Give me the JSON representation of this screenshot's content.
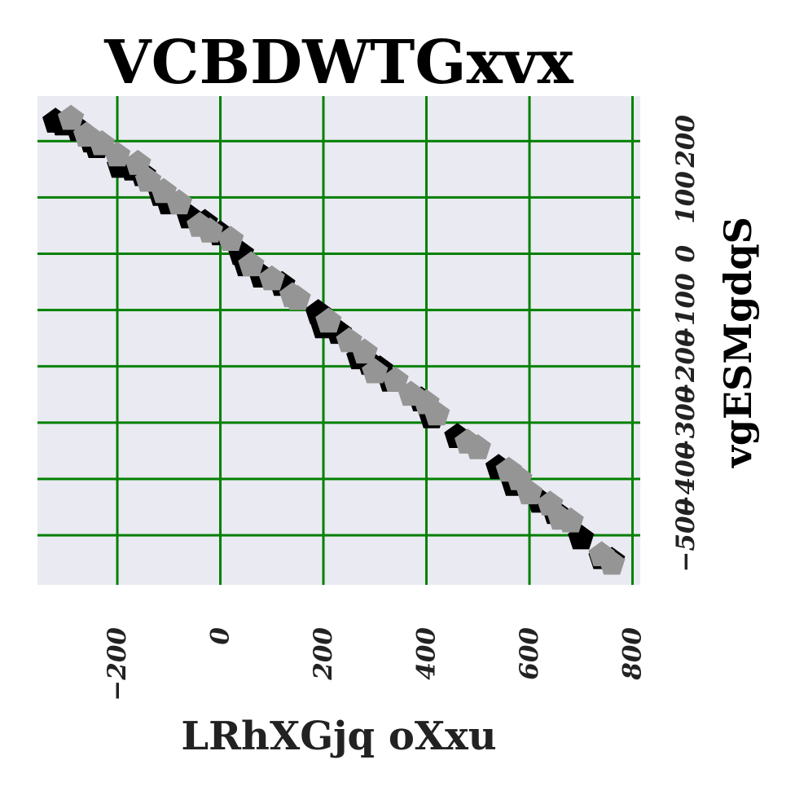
{
  "chart_data": {
    "type": "scatter",
    "title": "VCBDWTGxvx",
    "xlabel": "LRhXGjq oXxu",
    "ylabel": "vgESMgdqS",
    "xlim": [
      -355,
      815
    ],
    "ylim": [
      -588,
      280
    ],
    "x_ticks": [
      -200,
      0,
      200,
      400,
      600,
      800
    ],
    "y_ticks": [
      200,
      100,
      0,
      -100,
      -200,
      -300,
      -400,
      -500
    ],
    "x_tick_labels": [
      "−200",
      "0",
      "200",
      "400",
      "600",
      "800"
    ],
    "y_tick_labels": [
      "200",
      "100",
      "0",
      "−100",
      "−200",
      "−300",
      "−400",
      "−500"
    ],
    "x_axis_position": "bottom",
    "y_axis_position": "right",
    "grid": true,
    "colors": {
      "background": "#eaeaf2",
      "grid": "#008000",
      "series_1": "#000000",
      "series_2": "#959595"
    },
    "series": [
      {
        "marker": "pentagon",
        "color": "#000000",
        "points": [
          [
            -320,
            235
          ],
          [
            -305,
            230
          ],
          [
            -275,
            220
          ],
          [
            -250,
            200
          ],
          [
            -240,
            190
          ],
          [
            -195,
            155
          ],
          [
            -170,
            150
          ],
          [
            -150,
            140
          ],
          [
            -115,
            105
          ],
          [
            -100,
            90
          ],
          [
            -60,
            65
          ],
          [
            -30,
            55
          ],
          [
            0,
            35
          ],
          [
            40,
            0
          ],
          [
            50,
            -20
          ],
          [
            80,
            -40
          ],
          [
            120,
            -55
          ],
          [
            190,
            -105
          ],
          [
            200,
            -130
          ],
          [
            230,
            -140
          ],
          [
            270,
            -185
          ],
          [
            290,
            -195
          ],
          [
            310,
            -205
          ],
          [
            330,
            -225
          ],
          [
            390,
            -260
          ],
          [
            410,
            -290
          ],
          [
            460,
            -325
          ],
          [
            540,
            -380
          ],
          [
            570,
            -410
          ],
          [
            620,
            -440
          ],
          [
            650,
            -460
          ],
          [
            700,
            -505
          ],
          [
            740,
            -540
          ],
          [
            760,
            -545
          ]
        ]
      },
      {
        "marker": "pentagon",
        "color": "#959595",
        "points": [
          [
            -290,
            240
          ],
          [
            -260,
            210
          ],
          [
            -230,
            195
          ],
          [
            -200,
            175
          ],
          [
            -160,
            160
          ],
          [
            -140,
            130
          ],
          [
            -110,
            110
          ],
          [
            -80,
            90
          ],
          [
            -40,
            50
          ],
          [
            -20,
            40
          ],
          [
            20,
            25
          ],
          [
            60,
            -20
          ],
          [
            100,
            -45
          ],
          [
            140,
            -75
          ],
          [
            150,
            -80
          ],
          [
            210,
            -120
          ],
          [
            250,
            -155
          ],
          [
            280,
            -175
          ],
          [
            300,
            -210
          ],
          [
            340,
            -225
          ],
          [
            370,
            -250
          ],
          [
            400,
            -265
          ],
          [
            420,
            -285
          ],
          [
            480,
            -335
          ],
          [
            500,
            -345
          ],
          [
            560,
            -385
          ],
          [
            580,
            -400
          ],
          [
            600,
            -425
          ],
          [
            640,
            -445
          ],
          [
            660,
            -470
          ],
          [
            680,
            -475
          ],
          [
            740,
            -535
          ],
          [
            760,
            -550
          ]
        ]
      }
    ]
  }
}
